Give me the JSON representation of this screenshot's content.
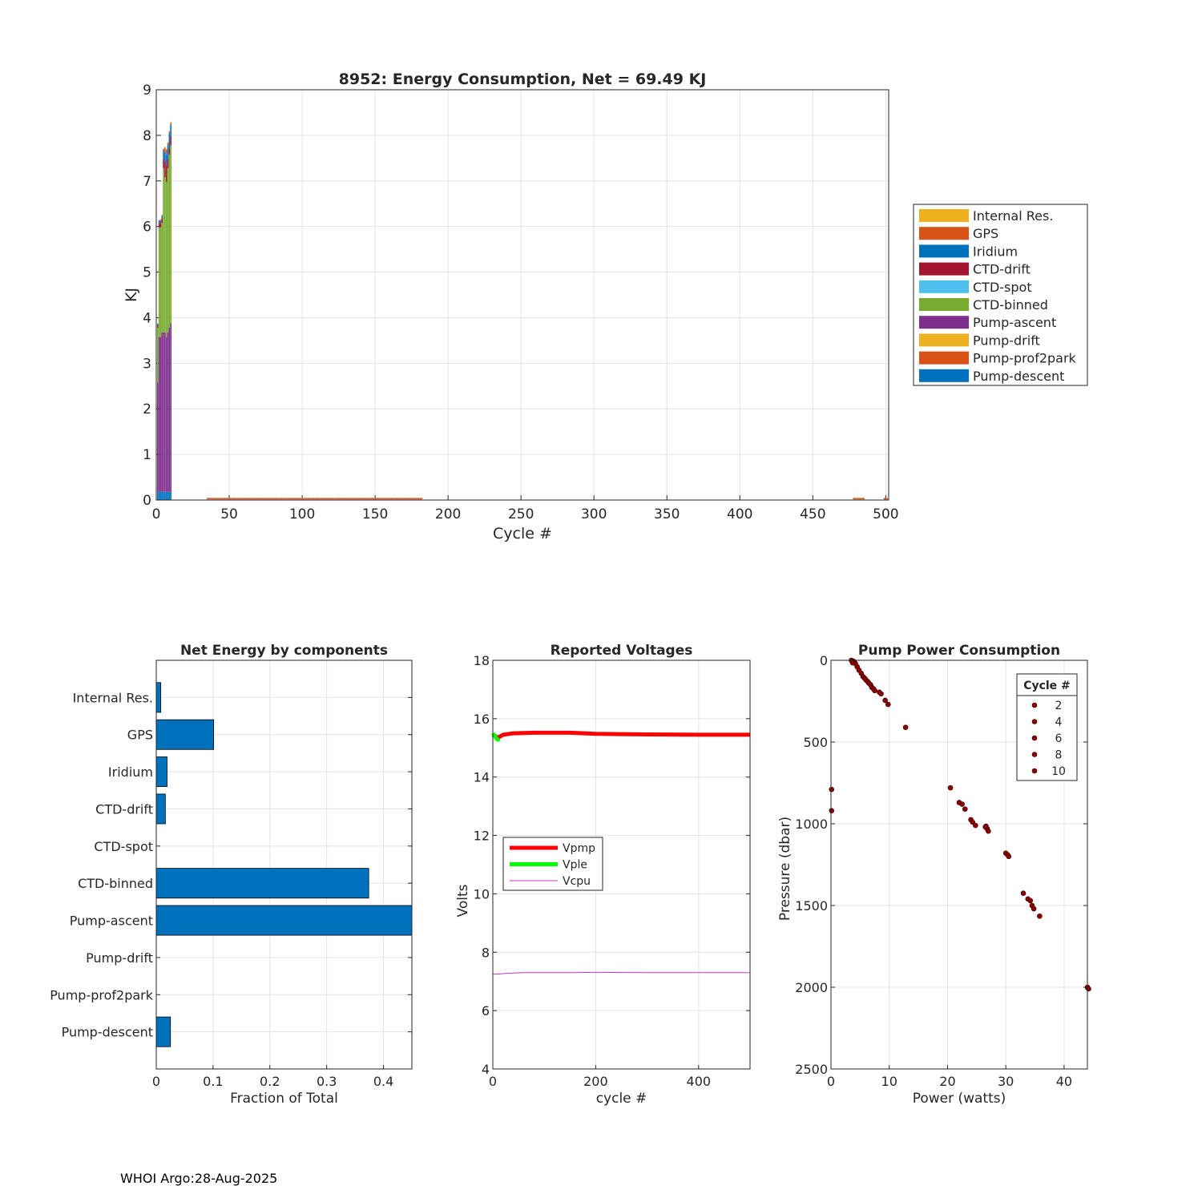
{
  "footer": "WHOI Argo:28-Aug-2025",
  "chart_data": [
    {
      "type": "bar",
      "stacked": true,
      "title": "8952: Energy Consumption,  Net =  69.49 KJ",
      "xlabel": "Cycle #",
      "ylabel": "KJ",
      "xlim": [
        0,
        502
      ],
      "ylim": [
        0,
        9
      ],
      "xticks": [
        0,
        50,
        100,
        150,
        200,
        250,
        300,
        350,
        400,
        450,
        500
      ],
      "yticks": [
        0,
        1,
        2,
        3,
        4,
        5,
        6,
        7,
        8,
        9
      ],
      "grid": true,
      "legend_position": "outside-right",
      "components_bottom_to_top": [
        "Pump-descent",
        "Pump-prof2park",
        "Pump-drift",
        "Pump-ascent",
        "CTD-binned",
        "CTD-spot",
        "CTD-drift",
        "Iridium",
        "GPS",
        "Internal Res."
      ],
      "legend": [
        {
          "label": "Internal Res.",
          "color": "#EDB120"
        },
        {
          "label": "GPS",
          "color": "#D95319"
        },
        {
          "label": "Iridium",
          "color": "#0072BD"
        },
        {
          "label": "CTD-drift",
          "color": "#A2142F"
        },
        {
          "label": "CTD-spot",
          "color": "#4DBEEE"
        },
        {
          "label": "CTD-binned",
          "color": "#77AC30"
        },
        {
          "label": "Pump-ascent",
          "color": "#7E2F8E"
        },
        {
          "label": "Pump-drift",
          "color": "#EDB120"
        },
        {
          "label": "Pump-prof2park",
          "color": "#D95319"
        },
        {
          "label": "Pump-descent",
          "color": "#0072BD"
        }
      ],
      "cycles": [
        {
          "cycle": 1,
          "values": [
            0.18,
            0,
            0,
            2.4,
            1.2,
            0,
            0.05,
            0.03,
            0.01,
            0.01
          ]
        },
        {
          "cycle": 2,
          "values": [
            0.18,
            0,
            0,
            3.4,
            2.4,
            0,
            0.1,
            0.05,
            0.01,
            0.01
          ]
        },
        {
          "cycle": 3,
          "values": [
            0.18,
            0,
            0,
            3.4,
            2.4,
            0,
            0.1,
            0.05,
            0.02,
            0.01
          ]
        },
        {
          "cycle": 4,
          "values": [
            0.18,
            0,
            0,
            3.5,
            2.4,
            0,
            0.1,
            0.05,
            0.02,
            0.01
          ]
        },
        {
          "cycle": 5,
          "values": [
            0.18,
            0,
            0,
            3.5,
            3.6,
            0,
            0.2,
            0.2,
            0.02,
            0.01
          ]
        },
        {
          "cycle": 6,
          "values": [
            0.18,
            0,
            0,
            3.5,
            3.4,
            0,
            0.35,
            0.2,
            0.1,
            0.02
          ]
        },
        {
          "cycle": 7,
          "values": [
            0.18,
            0,
            0,
            3.4,
            3.4,
            0,
            0.35,
            0.25,
            0.1,
            0.02
          ]
        },
        {
          "cycle": 8,
          "values": [
            0.18,
            0,
            0,
            3.5,
            3.6,
            0,
            0.2,
            0.3,
            0.05,
            0.02
          ]
        },
        {
          "cycle": 9,
          "values": [
            0.18,
            0,
            0,
            3.6,
            3.8,
            0,
            0.15,
            0.3,
            0.05,
            0.02
          ]
        },
        {
          "cycle": 10,
          "values": [
            0.18,
            0,
            0,
            3.7,
            3.9,
            0,
            0.2,
            0.25,
            0.04,
            0.02
          ]
        }
      ],
      "near_zero_bars": [
        {
          "from_cycle": 35,
          "to_cycle": 182,
          "total": 0.03
        },
        {
          "from_cycle": 478,
          "to_cycle": 485,
          "total": 0.03
        },
        {
          "from_cycle": 499,
          "to_cycle": 501,
          "total": 0.03
        }
      ]
    },
    {
      "type": "barh",
      "title": "Net Energy by components",
      "xlabel": "Fraction of Total",
      "ylabel": "",
      "xlim": [
        0,
        0.45
      ],
      "xticks": [
        0,
        0.1,
        0.2,
        0.3,
        0.4
      ],
      "xtick_labels": [
        "0",
        "0.1",
        "0.2",
        "0.3",
        "0.4"
      ],
      "grid": true,
      "bar_color": "#0072BD",
      "categories": [
        "Internal Res.",
        "GPS",
        "Iridium",
        "CTD-drift",
        "CTD-spot",
        "CTD-binned",
        "Pump-ascent",
        "Pump-drift",
        "Pump-prof2park",
        "Pump-descent"
      ],
      "values": [
        0.008,
        0.101,
        0.019,
        0.016,
        0.0,
        0.374,
        0.46,
        0.0,
        0.0,
        0.025
      ]
    },
    {
      "type": "line",
      "title": "Reported Voltages",
      "xlabel": "cycle #",
      "ylabel": "Volts",
      "xlim": [
        0,
        500
      ],
      "ylim": [
        4,
        18
      ],
      "xticks": [
        0,
        200,
        400
      ],
      "yticks": [
        4,
        6,
        8,
        10,
        12,
        14,
        16,
        18
      ],
      "grid": true,
      "legend_position": "middle-left",
      "series": [
        {
          "name": "Vpmp",
          "color": "#FF0000",
          "width": 5,
          "x": [
            0,
            5,
            10,
            20,
            40,
            80,
            150,
            200,
            300,
            400,
            500
          ],
          "y": [
            15.45,
            15.4,
            15.35,
            15.45,
            15.5,
            15.52,
            15.52,
            15.48,
            15.46,
            15.45,
            15.45
          ]
        },
        {
          "name": "Vple",
          "color": "#00FF00",
          "width": 5,
          "x": [
            0,
            2,
            4,
            6,
            8,
            10,
            12
          ],
          "y": [
            15.5,
            15.45,
            15.4,
            15.35,
            15.3,
            15.28,
            15.32
          ]
        },
        {
          "name": "Vcpu",
          "color": "#CC33CC",
          "width": 1,
          "x": [
            0,
            10,
            30,
            60,
            100,
            150,
            200,
            300,
            400,
            500
          ],
          "y": [
            7.25,
            7.25,
            7.28,
            7.3,
            7.3,
            7.3,
            7.31,
            7.3,
            7.3,
            7.3
          ]
        }
      ]
    },
    {
      "type": "scatter",
      "title": "Pump Power Consumption",
      "xlabel": "Power (watts)",
      "ylabel": "Pressure (dbar)",
      "xlim": [
        0,
        44
      ],
      "ylim": [
        0,
        2500
      ],
      "y_reversed": true,
      "xticks": [
        0,
        10,
        20,
        30,
        40
      ],
      "yticks": [
        0,
        500,
        1000,
        1500,
        2000,
        2500
      ],
      "grid": true,
      "marker_color": "#8B0000",
      "legend_title": "Cycle #",
      "legend_entries": [
        "2",
        "4",
        "6",
        "8",
        "10"
      ],
      "legend_position": "top-right",
      "points": [
        [
          3.5,
          0
        ],
        [
          3.8,
          5
        ],
        [
          4.0,
          10
        ],
        [
          3.7,
          15
        ],
        [
          4.2,
          20
        ],
        [
          4.5,
          40
        ],
        [
          4.8,
          60
        ],
        [
          5.2,
          80
        ],
        [
          5.5,
          100
        ],
        [
          5.8,
          110
        ],
        [
          6.0,
          120
        ],
        [
          6.3,
          130
        ],
        [
          6.5,
          140
        ],
        [
          6.8,
          150
        ],
        [
          7.0,
          165
        ],
        [
          7.3,
          175
        ],
        [
          7.5,
          185
        ],
        [
          8.3,
          195
        ],
        [
          8.6,
          205
        ],
        [
          9.3,
          245
        ],
        [
          9.8,
          270
        ],
        [
          12.8,
          410
        ],
        [
          0.1,
          790
        ],
        [
          0.1,
          920
        ],
        [
          20.5,
          780
        ],
        [
          22.0,
          870
        ],
        [
          22.5,
          880
        ],
        [
          23.0,
          910
        ],
        [
          24.0,
          975
        ],
        [
          24.3,
          990
        ],
        [
          24.8,
          1010
        ],
        [
          26.5,
          1020
        ],
        [
          26.8,
          1030
        ],
        [
          27.0,
          1045
        ],
        [
          26.6,
          1015
        ],
        [
          30.0,
          1180
        ],
        [
          30.3,
          1190
        ],
        [
          30.5,
          1200
        ],
        [
          33.0,
          1425
        ],
        [
          33.8,
          1460
        ],
        [
          34.2,
          1470
        ],
        [
          34.5,
          1500
        ],
        [
          34.8,
          1520
        ],
        [
          35.8,
          1565
        ],
        [
          44.0,
          2000
        ],
        [
          44.2,
          2010
        ]
      ]
    }
  ]
}
